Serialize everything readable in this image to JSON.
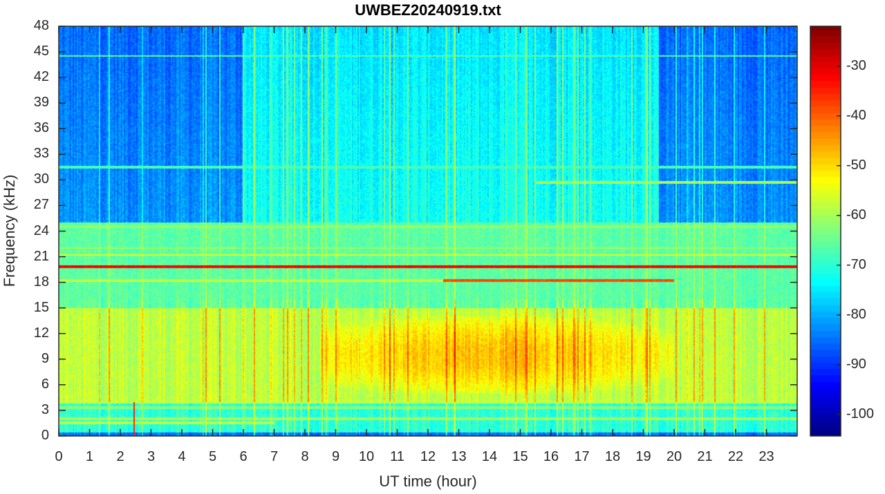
{
  "chart_data": {
    "type": "heatmap",
    "title": "UWBEZ20240919.txt",
    "xlabel": "UT time (hour)",
    "ylabel": "Frequency (kHz)",
    "xlim": [
      0,
      24
    ],
    "ylim": [
      0,
      48
    ],
    "xticks": [
      0,
      1,
      2,
      3,
      4,
      5,
      6,
      7,
      8,
      9,
      10,
      11,
      12,
      13,
      14,
      15,
      16,
      17,
      18,
      19,
      20,
      21,
      22,
      23
    ],
    "yticks": [
      0,
      3,
      6,
      9,
      12,
      15,
      18,
      21,
      24,
      27,
      30,
      33,
      36,
      39,
      42,
      45,
      48
    ],
    "colormap": "jet",
    "clim": [
      -104.3,
      -22
    ],
    "colorbar_ticks": [
      -30,
      -40,
      -50,
      -60,
      -70,
      -80,
      -90,
      -100
    ],
    "regions": [
      {
        "name": "upper band night",
        "freq_khz": [
          25,
          48
        ],
        "time_h": [
          [
            0,
            6
          ],
          [
            19.5,
            24
          ]
        ],
        "level_db": -82
      },
      {
        "name": "upper band day",
        "freq_khz": [
          25,
          48
        ],
        "time_h": [
          [
            6,
            19.5
          ]
        ],
        "level_db": -72
      },
      {
        "name": "mid band",
        "freq_khz": [
          15,
          25
        ],
        "level_db": -66
      },
      {
        "name": "low band",
        "freq_khz": [
          4,
          15
        ],
        "level_db": -58
      },
      {
        "name": "daytime enhancement",
        "freq_khz": [
          5,
          14
        ],
        "time_h": [
          [
            8.5,
            20
          ]
        ],
        "level_db": -48
      },
      {
        "name": "very low band",
        "freq_khz": [
          0,
          4
        ],
        "level_db": -70
      }
    ],
    "lines": [
      {
        "freq_khz": 19.8,
        "time_h": [
          0,
          24
        ],
        "level_db": -32
      },
      {
        "freq_khz": 18.2,
        "time_h": [
          0,
          12.5
        ],
        "level_db": -58
      },
      {
        "freq_khz": 18.2,
        "time_h": [
          12.5,
          20
        ],
        "level_db": -38
      },
      {
        "freq_khz": 21.2,
        "time_h": [
          0,
          24
        ],
        "level_db": -55
      },
      {
        "freq_khz": 22.0,
        "time_h": [
          0,
          24
        ],
        "level_db": -60
      },
      {
        "freq_khz": 24.5,
        "time_h": [
          0,
          24
        ],
        "level_db": -62
      },
      {
        "freq_khz": 29.7,
        "time_h": [
          15.5,
          24
        ],
        "level_db": -60
      },
      {
        "freq_khz": 31.5,
        "time_h": [
          0,
          24
        ],
        "level_db": -68
      },
      {
        "freq_khz": 44.5,
        "time_h": [
          0,
          24
        ],
        "level_db": -66
      },
      {
        "freq_khz": 4.0,
        "time_h": [
          0,
          24
        ],
        "level_db": -58
      },
      {
        "freq_khz": 3.3,
        "time_h": [
          0,
          24
        ],
        "level_db": -62
      },
      {
        "freq_khz": 2.0,
        "time_h": [
          0,
          24
        ],
        "level_db": -60
      },
      {
        "freq_khz": 1.5,
        "time_h": [
          0,
          7
        ],
        "level_db": -58
      }
    ],
    "spikes": [
      {
        "time_h": 2.45,
        "freq_khz": [
          0,
          4
        ],
        "level_db": -35
      }
    ]
  }
}
